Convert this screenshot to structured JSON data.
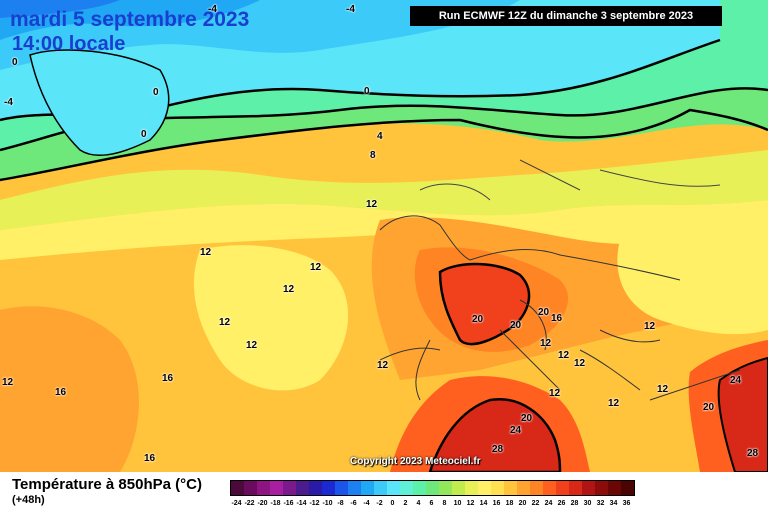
{
  "header": {
    "date": "mardi 5 septembre 2023",
    "time": "14:00 locale",
    "run": "Run ECMWF 12Z du dimanche 3 septembre 2023"
  },
  "copyright": "Copyright 2023 Meteociel.fr",
  "legend": {
    "title": "Température à 850hPa (°C)",
    "subtitle": "(+48h)",
    "scale_values": [
      "-24",
      "-22",
      "-20",
      "-18",
      "-16",
      "-14",
      "-12",
      "-10",
      "-8",
      "-6",
      "-4",
      "-2",
      "0",
      "2",
      "4",
      "6",
      "8",
      "10",
      "12",
      "14",
      "16",
      "18",
      "20",
      "22",
      "24",
      "26",
      "28",
      "30",
      "32",
      "34",
      "36"
    ],
    "scale_colors": [
      "#4b0a3a",
      "#6a0b5e",
      "#8c1582",
      "#a81ea0",
      "#7a1a8c",
      "#4c1c8c",
      "#2a1aa8",
      "#1a2ad0",
      "#1a54e8",
      "#1c80f0",
      "#20a8f4",
      "#3ccaf8",
      "#5ae6f8",
      "#60f0d8",
      "#5cf0a8",
      "#6ee87a",
      "#92e85a",
      "#c0ec4e",
      "#e8f058",
      "#fff068",
      "#ffe050",
      "#ffc43c",
      "#ffa430",
      "#ff8424",
      "#ff6020",
      "#f0401c",
      "#d82818",
      "#b01414",
      "#8c0c0c",
      "#6a0606",
      "#4a0404"
    ]
  },
  "map_labels": [
    {
      "text": "-4",
      "name": "label-minus4-top"
    },
    {
      "text": "-4",
      "name": "label-minus4-mid"
    },
    {
      "text": "-4",
      "name": "label-minus4-left"
    },
    {
      "text": "0",
      "name": "label-0-greenland-west"
    },
    {
      "text": "0",
      "name": "label-0-greenland"
    },
    {
      "text": "0",
      "name": "label-0-greenland-south"
    },
    {
      "text": "0",
      "name": "label-0-arctic"
    },
    {
      "text": "4",
      "name": "label-4-north"
    },
    {
      "text": "8",
      "name": "label-8-north"
    },
    {
      "text": "12",
      "name": "label-12-atlantic-north"
    },
    {
      "text": "12",
      "name": "label-12-atlantic-west"
    },
    {
      "text": "12",
      "name": "label-12-atlantic-mid"
    },
    {
      "text": "12",
      "name": "label-12-atlantic-center"
    },
    {
      "text": "12",
      "name": "label-12-atlantic-south"
    },
    {
      "text": "12",
      "name": "label-12-atlantic-southwest"
    },
    {
      "text": "12",
      "name": "label-12-iberia-west"
    },
    {
      "text": "12",
      "name": "label-12-far-west"
    },
    {
      "text": "16",
      "name": "label-16-west"
    },
    {
      "text": "16",
      "name": "label-16-southwest"
    },
    {
      "text": "16",
      "name": "label-16-south-atlantic"
    },
    {
      "text": "20",
      "name": "label-20-france"
    },
    {
      "text": "20",
      "name": "label-20-alps"
    },
    {
      "text": "20",
      "name": "label-20-alps-east"
    },
    {
      "text": "16",
      "name": "label-16-alps"
    },
    {
      "text": "12",
      "name": "label-12-balkans-north"
    },
    {
      "text": "12",
      "name": "label-12-italy-north"
    },
    {
      "text": "12",
      "name": "label-12-italy"
    },
    {
      "text": "12",
      "name": "label-12-adriatic"
    },
    {
      "text": "12",
      "name": "label-12-greece"
    },
    {
      "text": "12",
      "name": "label-12-east"
    },
    {
      "text": "12",
      "name": "label-12-east-europe"
    },
    {
      "text": "20",
      "name": "label-20-turkey"
    },
    {
      "text": "24",
      "name": "label-24-turkey"
    },
    {
      "text": "20",
      "name": "label-20-africa"
    },
    {
      "text": "24",
      "name": "label-24-africa"
    },
    {
      "text": "28",
      "name": "label-28-africa"
    },
    {
      "text": "28",
      "name": "label-28-middle-east"
    }
  ]
}
